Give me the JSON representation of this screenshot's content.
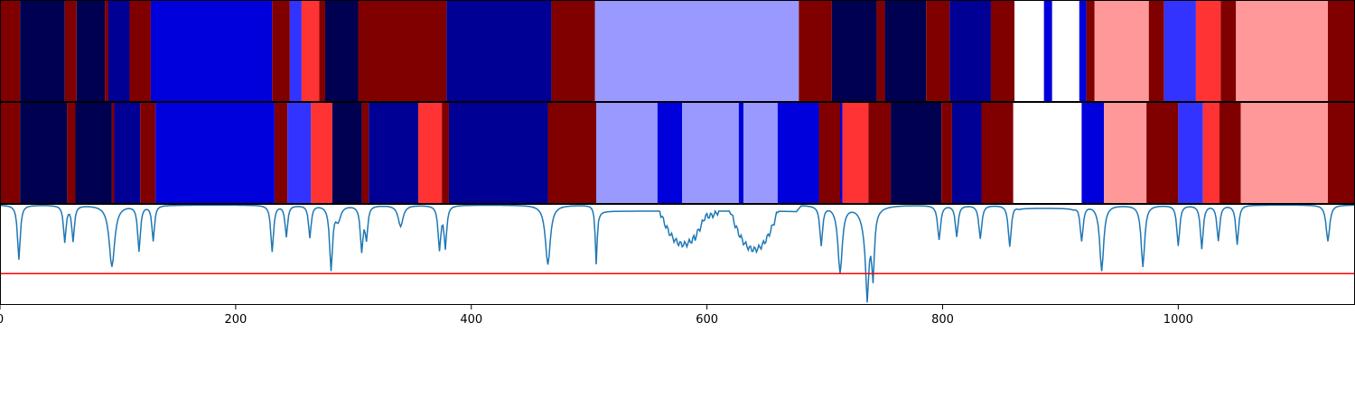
{
  "chart_data": {
    "type": "heatmap",
    "title": "",
    "xlim": [
      0,
      1150
    ],
    "colors": {
      "white": "#ffffff",
      "dark_red": "#800000",
      "red": "#ff3333",
      "light_red": "#ff9999",
      "navy": "#000050",
      "dark_blue": "#000094",
      "blue": "#0000dd",
      "medium_blue": "#3333ff",
      "light_blue": "#9999ff"
    },
    "tracks": [
      {
        "segments": [
          [
            0,
            17,
            "dark_red"
          ],
          [
            17,
            55,
            "navy"
          ],
          [
            55,
            65,
            "dark_red"
          ],
          [
            65,
            89,
            "navy"
          ],
          [
            89,
            92,
            "dark_red"
          ],
          [
            92,
            110,
            "dark_blue"
          ],
          [
            110,
            128,
            "dark_red"
          ],
          [
            128,
            231,
            "blue"
          ],
          [
            231,
            246,
            "dark_red"
          ],
          [
            246,
            256,
            "medium_blue"
          ],
          [
            256,
            271,
            "red"
          ],
          [
            271,
            276,
            "dark_red"
          ],
          [
            276,
            304,
            "navy"
          ],
          [
            304,
            379,
            "dark_red"
          ],
          [
            379,
            468,
            "dark_blue"
          ],
          [
            468,
            505,
            "dark_red"
          ],
          [
            505,
            678,
            "light_blue"
          ],
          [
            678,
            706,
            "dark_red"
          ],
          [
            706,
            744,
            "navy"
          ],
          [
            744,
            751,
            "dark_red"
          ],
          [
            751,
            786,
            "navy"
          ],
          [
            786,
            806,
            "dark_red"
          ],
          [
            806,
            841,
            "dark_blue"
          ],
          [
            841,
            861,
            "dark_red"
          ],
          [
            861,
            886,
            "white"
          ],
          [
            886,
            893,
            "blue"
          ],
          [
            893,
            916,
            "white"
          ],
          [
            916,
            922,
            "blue"
          ],
          [
            922,
            929,
            "dark_red"
          ],
          [
            929,
            975,
            "light_red"
          ],
          [
            975,
            988,
            "dark_red"
          ],
          [
            988,
            1015,
            "medium_blue"
          ],
          [
            1015,
            1036,
            "red"
          ],
          [
            1036,
            1049,
            "dark_red"
          ],
          [
            1049,
            1127,
            "light_red"
          ],
          [
            1127,
            1150,
            "dark_red"
          ]
        ]
      },
      {
        "segments": [
          [
            0,
            17,
            "dark_red"
          ],
          [
            17,
            57,
            "navy"
          ],
          [
            57,
            64,
            "dark_red"
          ],
          [
            64,
            95,
            "navy"
          ],
          [
            95,
            97,
            "dark_red"
          ],
          [
            97,
            119,
            "dark_blue"
          ],
          [
            119,
            132,
            "dark_red"
          ],
          [
            132,
            233,
            "blue"
          ],
          [
            233,
            244,
            "dark_red"
          ],
          [
            244,
            264,
            "medium_blue"
          ],
          [
            264,
            282,
            "red"
          ],
          [
            282,
            307,
            "navy"
          ],
          [
            307,
            313,
            "dark_red"
          ],
          [
            313,
            355,
            "dark_blue"
          ],
          [
            355,
            375,
            "red"
          ],
          [
            375,
            381,
            "dark_red"
          ],
          [
            381,
            465,
            "dark_blue"
          ],
          [
            465,
            506,
            "dark_red"
          ],
          [
            506,
            558,
            "light_blue"
          ],
          [
            558,
            579,
            "blue"
          ],
          [
            579,
            627,
            "light_blue"
          ],
          [
            627,
            631,
            "blue"
          ],
          [
            631,
            660,
            "light_blue"
          ],
          [
            660,
            695,
            "blue"
          ],
          [
            695,
            713,
            "dark_red"
          ],
          [
            713,
            715,
            "blue"
          ],
          [
            715,
            737,
            "red"
          ],
          [
            737,
            756,
            "dark_red"
          ],
          [
            756,
            799,
            "navy"
          ],
          [
            799,
            808,
            "dark_red"
          ],
          [
            808,
            833,
            "dark_blue"
          ],
          [
            833,
            860,
            "dark_red"
          ],
          [
            860,
            918,
            "white"
          ],
          [
            918,
            937,
            "blue"
          ],
          [
            937,
            973,
            "light_red"
          ],
          [
            973,
            1000,
            "dark_red"
          ],
          [
            1000,
            1021,
            "medium_blue"
          ],
          [
            1021,
            1035,
            "red"
          ],
          [
            1035,
            1053,
            "dark_red"
          ],
          [
            1053,
            1127,
            "light_red"
          ],
          [
            1127,
            1150,
            "dark_red"
          ]
        ]
      }
    ],
    "line_panel": {
      "ylim": [
        0,
        1
      ],
      "threshold": 0.31,
      "line_color": "#1f77b4",
      "threshold_color": "#ff0000",
      "baseline": 0.99,
      "dips": [
        [
          16,
          0.45,
          1.4
        ],
        [
          55,
          0.63,
          1.3
        ],
        [
          62,
          0.64,
          1.3
        ],
        [
          95,
          0.38,
          2.8
        ],
        [
          118,
          0.54,
          1.4
        ],
        [
          130,
          0.64,
          1.3
        ],
        [
          231,
          0.53,
          1.4
        ],
        [
          243,
          0.68,
          1.3
        ],
        [
          263,
          0.67,
          1.3
        ],
        [
          281,
          0.36,
          1.5
        ],
        [
          287,
          0.85,
          2.5
        ],
        [
          307,
          0.55,
          1.4
        ],
        [
          311,
          0.68,
          1.3
        ],
        [
          340,
          0.78,
          2.5
        ],
        [
          373,
          0.56,
          1.4
        ],
        [
          378,
          0.58,
          1.3
        ],
        [
          465,
          0.4,
          2.5
        ],
        [
          506,
          0.42,
          1.0
        ],
        [
          713,
          0.33,
          2.2
        ],
        [
          736,
          0.62,
          4.0
        ],
        [
          736,
          0.44,
          1.3
        ],
        [
          741,
          0.4,
          1.3
        ],
        [
          697,
          0.6,
          1.4
        ],
        [
          797,
          0.65,
          1.5
        ],
        [
          812,
          0.68,
          1.4
        ],
        [
          832,
          0.66,
          1.5
        ],
        [
          857,
          0.58,
          1.5
        ],
        [
          918,
          0.64,
          1.5
        ],
        [
          935,
          0.34,
          2.0
        ],
        [
          970,
          0.38,
          1.8
        ],
        [
          1000,
          0.59,
          1.4
        ],
        [
          1020,
          0.56,
          1.4
        ],
        [
          1034,
          0.64,
          1.4
        ],
        [
          1050,
          0.6,
          1.4
        ],
        [
          1127,
          0.63,
          1.8
        ]
      ],
      "plateaus": [
        [
          505,
          680,
          0.93
        ],
        [
          861,
          915,
          0.96
        ]
      ],
      "plateau_dips": [
        [
          560,
          600,
          0.6
        ],
        [
          620,
          660,
          0.55
        ],
        [
          590,
          610,
          0.88
        ]
      ]
    },
    "x_ticks": [
      {
        "value": 0,
        "label": "0"
      },
      {
        "value": 200,
        "label": "200"
      },
      {
        "value": 400,
        "label": "400"
      },
      {
        "value": 600,
        "label": "600"
      },
      {
        "value": 800,
        "label": "800"
      },
      {
        "value": 1000,
        "label": "1000"
      }
    ]
  }
}
